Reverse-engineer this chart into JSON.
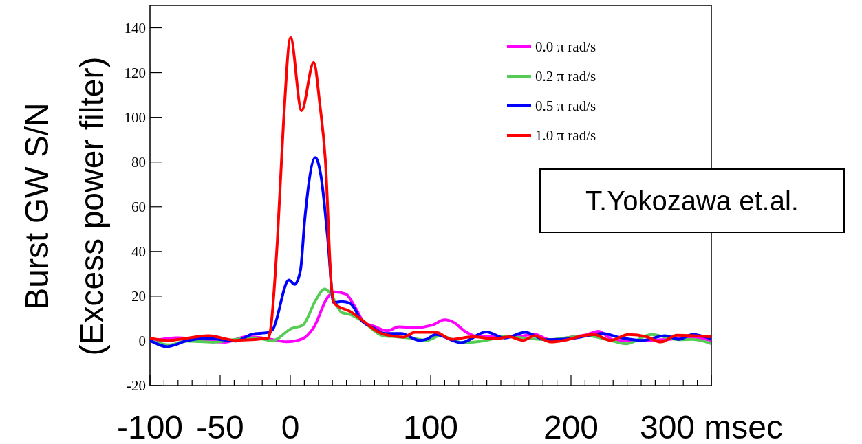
{
  "chart_data": {
    "type": "line",
    "ylabel": "Burst GW S/N\n(Excess power filter)",
    "xlim": [
      -100,
      300
    ],
    "ylim": [
      -20,
      150
    ],
    "xticks": [
      -100,
      -50,
      {
        "value": -90,
        "label": null
      },
      {
        "value": -80,
        "label": null
      },
      {
        "value": -70,
        "label": null
      },
      {
        "value": -60,
        "label": null
      },
      {
        "value": -40,
        "label": null
      },
      {
        "value": -30,
        "label": null
      },
      {
        "value": -20,
        "label": null
      },
      {
        "value": -10,
        "label": null
      },
      0,
      {
        "value": 10,
        "label": null
      },
      {
        "value": 20,
        "label": null
      },
      {
        "value": 30,
        "label": null
      },
      {
        "value": 40,
        "label": null
      },
      {
        "value": 50,
        "label": null
      },
      {
        "value": 60,
        "label": null
      },
      {
        "value": 70,
        "label": null
      },
      {
        "value": 80,
        "label": null
      },
      {
        "value": 90,
        "label": null
      },
      100,
      {
        "value": 110,
        "label": null
      },
      {
        "value": 120,
        "label": null
      },
      {
        "value": 130,
        "label": null
      },
      {
        "value": 140,
        "label": null
      },
      {
        "value": 150,
        "label": null
      },
      {
        "value": 160,
        "label": null
      },
      {
        "value": 170,
        "label": null
      },
      {
        "value": 180,
        "label": null
      },
      {
        "value": 190,
        "label": null
      },
      200,
      {
        "value": 210,
        "label": null
      },
      {
        "value": 220,
        "label": null
      },
      {
        "value": 230,
        "label": null
      },
      {
        "value": 240,
        "label": null
      },
      {
        "value": 250,
        "label": null
      },
      {
        "value": 260,
        "label": null
      },
      {
        "value": 270,
        "label": null
      },
      {
        "value": 280,
        "label": null
      },
      {
        "value": 290,
        "label": null
      },
      {
        "value": 300,
        "label": "300 msec"
      }
    ],
    "yticks": [
      -20,
      0,
      20,
      40,
      60,
      80,
      100,
      120,
      140
    ],
    "grid": false,
    "legend": "top right",
    "line_style": "solid",
    "marker": "none",
    "annotations": [
      "T.Yokozawa et.al."
    ],
    "series": [
      {
        "name": "0.0 π rad/s",
        "color": "#ff00ff",
        "x": [
          -100,
          -79.5,
          -63.2,
          -46.9,
          -30.5,
          -15.8,
          -2.8,
          8.5,
          16.7,
          26.5,
          31.4,
          39.6,
          46,
          52.8,
          59.3,
          69.1,
          77.3,
          88.7,
          101,
          110,
          116.6,
          124.8,
          132.9,
          162.3,
          173.7,
          185,
          201.6,
          211.4,
          219.5,
          231,
          244,
          270.2,
          283.2,
          300
        ],
        "values": [
          -0.1,
          1.4,
          0.4,
          -0.6,
          1.9,
          0.9,
          -0.4,
          0.9,
          6,
          19.4,
          21.9,
          20.9,
          15.3,
          8.1,
          6.6,
          4.5,
          6.3,
          5.9,
          7,
          9.4,
          8.2,
          4.1,
          2,
          2,
          3,
          0.5,
          1.8,
          2.8,
          4.3,
          0.2,
          0.2,
          0.7,
          1.7,
          0.2
        ]
      },
      {
        "name": "0.2 π rad/s",
        "color": "#55cc55",
        "x": [
          -100,
          -86,
          -74.6,
          -55,
          -38.7,
          -25.6,
          -12.6,
          0.7,
          8.8,
          18.6,
          24.4,
          28.4,
          36.6,
          43,
          51,
          66,
          75.6,
          92,
          97,
          106.9,
          123.2,
          139.6,
          152.7,
          182,
          211.5,
          228,
          239.3,
          257.4,
          276.8,
          286.6,
          300
        ],
        "values": [
          0.2,
          -1.8,
          -0.1,
          -0.6,
          0.7,
          1.4,
          0.1,
          5.5,
          7,
          18.8,
          23.2,
          21.4,
          12.7,
          11.7,
          9,
          2.3,
          1.8,
          0.7,
          0.2,
          2.3,
          -0.8,
          0.2,
          2,
          0.5,
          2.3,
          0.2,
          -1.3,
          2.8,
          0.5,
          0.7,
          -1.3
        ]
      },
      {
        "name": "0.5 π rad/s",
        "color": "#0000ff",
        "x": [
          -100,
          -87.7,
          -74.6,
          -60,
          -38.7,
          -27.3,
          -15.8,
          -12.6,
          -1,
          3.1,
          7.2,
          10.4,
          17.8,
          21.9,
          26.8,
          30.9,
          36.6,
          43,
          51,
          59.3,
          67.5,
          78.9,
          92,
          97,
          103.6,
          121.6,
          139.6,
          152.7,
          167.4,
          182,
          198.5,
          222.9,
          232.7,
          250.6,
          267,
          276.8,
          286.6,
          300
        ],
        "values": [
          0.2,
          -2.6,
          -0.1,
          1.1,
          -0.1,
          3,
          3.8,
          5,
          27.2,
          25.3,
          31.5,
          55,
          82,
          73.5,
          44.8,
          17.1,
          17.6,
          16.6,
          8.9,
          5.8,
          3.3,
          3.3,
          0.2,
          0.7,
          2.8,
          -0.8,
          4,
          1.3,
          3.8,
          0.5,
          0.9,
          3.3,
          1.8,
          0.2,
          2.3,
          0.7,
          2.8,
          0.9
        ]
      },
      {
        "name": "1.0 π rad/s",
        "color": "#ff0000",
        "x": [
          -100,
          -87.7,
          -58.3,
          -38.7,
          -15.8,
          -14.4,
          -9.2,
          -5,
          0.2,
          8,
          16.7,
          21,
          25,
          29.3,
          31.6,
          43,
          51,
          59.3,
          67.5,
          80.6,
          88.7,
          97,
          103.6,
          115,
          129.8,
          146,
          156,
          165.8,
          174,
          185.5,
          195.3,
          208.4,
          216.5,
          228,
          241,
          254,
          264,
          275.5,
          287,
          300
        ],
        "values": [
          1.2,
          0.2,
          2.3,
          0.2,
          1.2,
          3.8,
          45,
          96,
          135.6,
          103,
          124.6,
          106,
          80.7,
          24.3,
          16.6,
          13,
          9.4,
          5.3,
          2.8,
          1.7,
          3.8,
          3.8,
          3.8,
          0.7,
          1.8,
          0.9,
          1.8,
          0.2,
          2.3,
          -0.5,
          0.2,
          2.3,
          2.8,
          0.2,
          2.8,
          1.8,
          -0.5,
          2.5,
          2.3,
          1.8
        ]
      }
    ]
  }
}
